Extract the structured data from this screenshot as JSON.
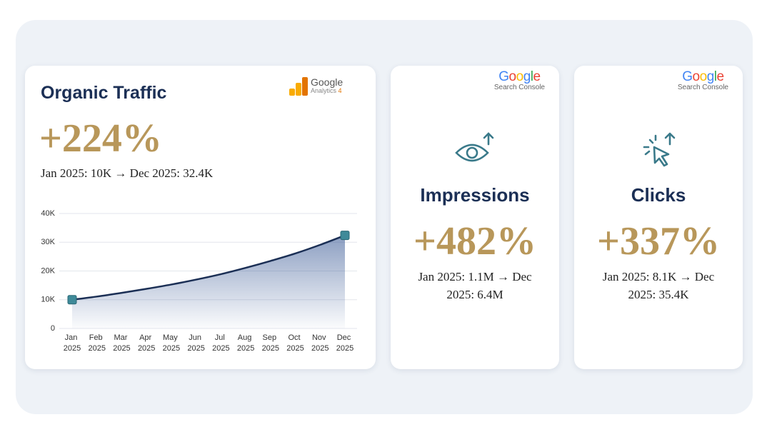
{
  "organic_traffic": {
    "title": "Organic Traffic",
    "logo_brand": "Google",
    "logo_product": "Analytics",
    "logo_version": "4",
    "stat": "+224%",
    "detail": "Jan 2025: 10K → Dec 2025: 32.4K"
  },
  "chart_data": {
    "type": "area",
    "color": "#1b2f55",
    "categories": [
      "Jan 2025",
      "Feb 2025",
      "Mar 2025",
      "Apr 2025",
      "May 2025",
      "Jun 2025",
      "Jul 2025",
      "Aug 2025",
      "Sep 2025",
      "Oct 2025",
      "Nov 2025",
      "Dec 2025"
    ],
    "values": [
      10000,
      11100,
      12400,
      13800,
      15300,
      17000,
      18900,
      21100,
      23500,
      26100,
      29100,
      32400
    ],
    "ylim": [
      0,
      40000
    ],
    "yticks": [
      0,
      {
        "value": 10000,
        "label": "10K"
      },
      {
        "value": 20000,
        "label": "20K"
      },
      {
        "value": 30000,
        "label": "30K"
      },
      {
        "value": 40000,
        "label": "40K"
      }
    ],
    "grid": true
  },
  "impressions": {
    "logo_brand": "Google",
    "logo_product": "Search Console",
    "title": "Impressions",
    "stat": "+482%",
    "detail": "Jan 2025: 1.1M → Dec 2025: 6.4M"
  },
  "clicks": {
    "logo_brand": "Google",
    "logo_product": "Search Console",
    "title": "Clicks",
    "stat": "+337%",
    "detail": "Jan 2025: 8.1K → Dec 2025: 35.4K"
  }
}
